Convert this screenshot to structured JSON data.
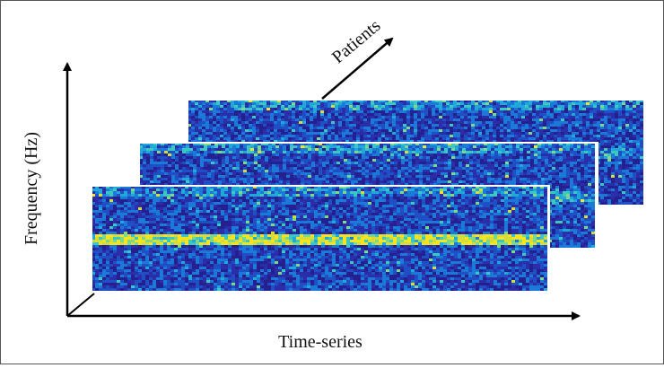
{
  "figure": {
    "x_axis_label": "Time-series",
    "y_axis_label": "Frequency (Hz)",
    "depth_axis_label": "Patients"
  },
  "spectrograms": [
    {
      "name": "spectrogram-back",
      "seed": 11,
      "band_strength": 0.25
    },
    {
      "name": "spectrogram-middle",
      "seed": 29,
      "band_strength": 0.35
    },
    {
      "name": "spectrogram-front",
      "seed": 53,
      "band_strength": 1.0
    }
  ],
  "colors": {
    "background": "#ffffff",
    "border": "#555555",
    "axis": "#000000",
    "colormap": [
      "#25208f",
      "#2b2ea8",
      "#1f4fc4",
      "#1b7ad8",
      "#20a8d8",
      "#3cc7c0",
      "#7bd98a",
      "#d6dc3a",
      "#f5e520"
    ]
  }
}
